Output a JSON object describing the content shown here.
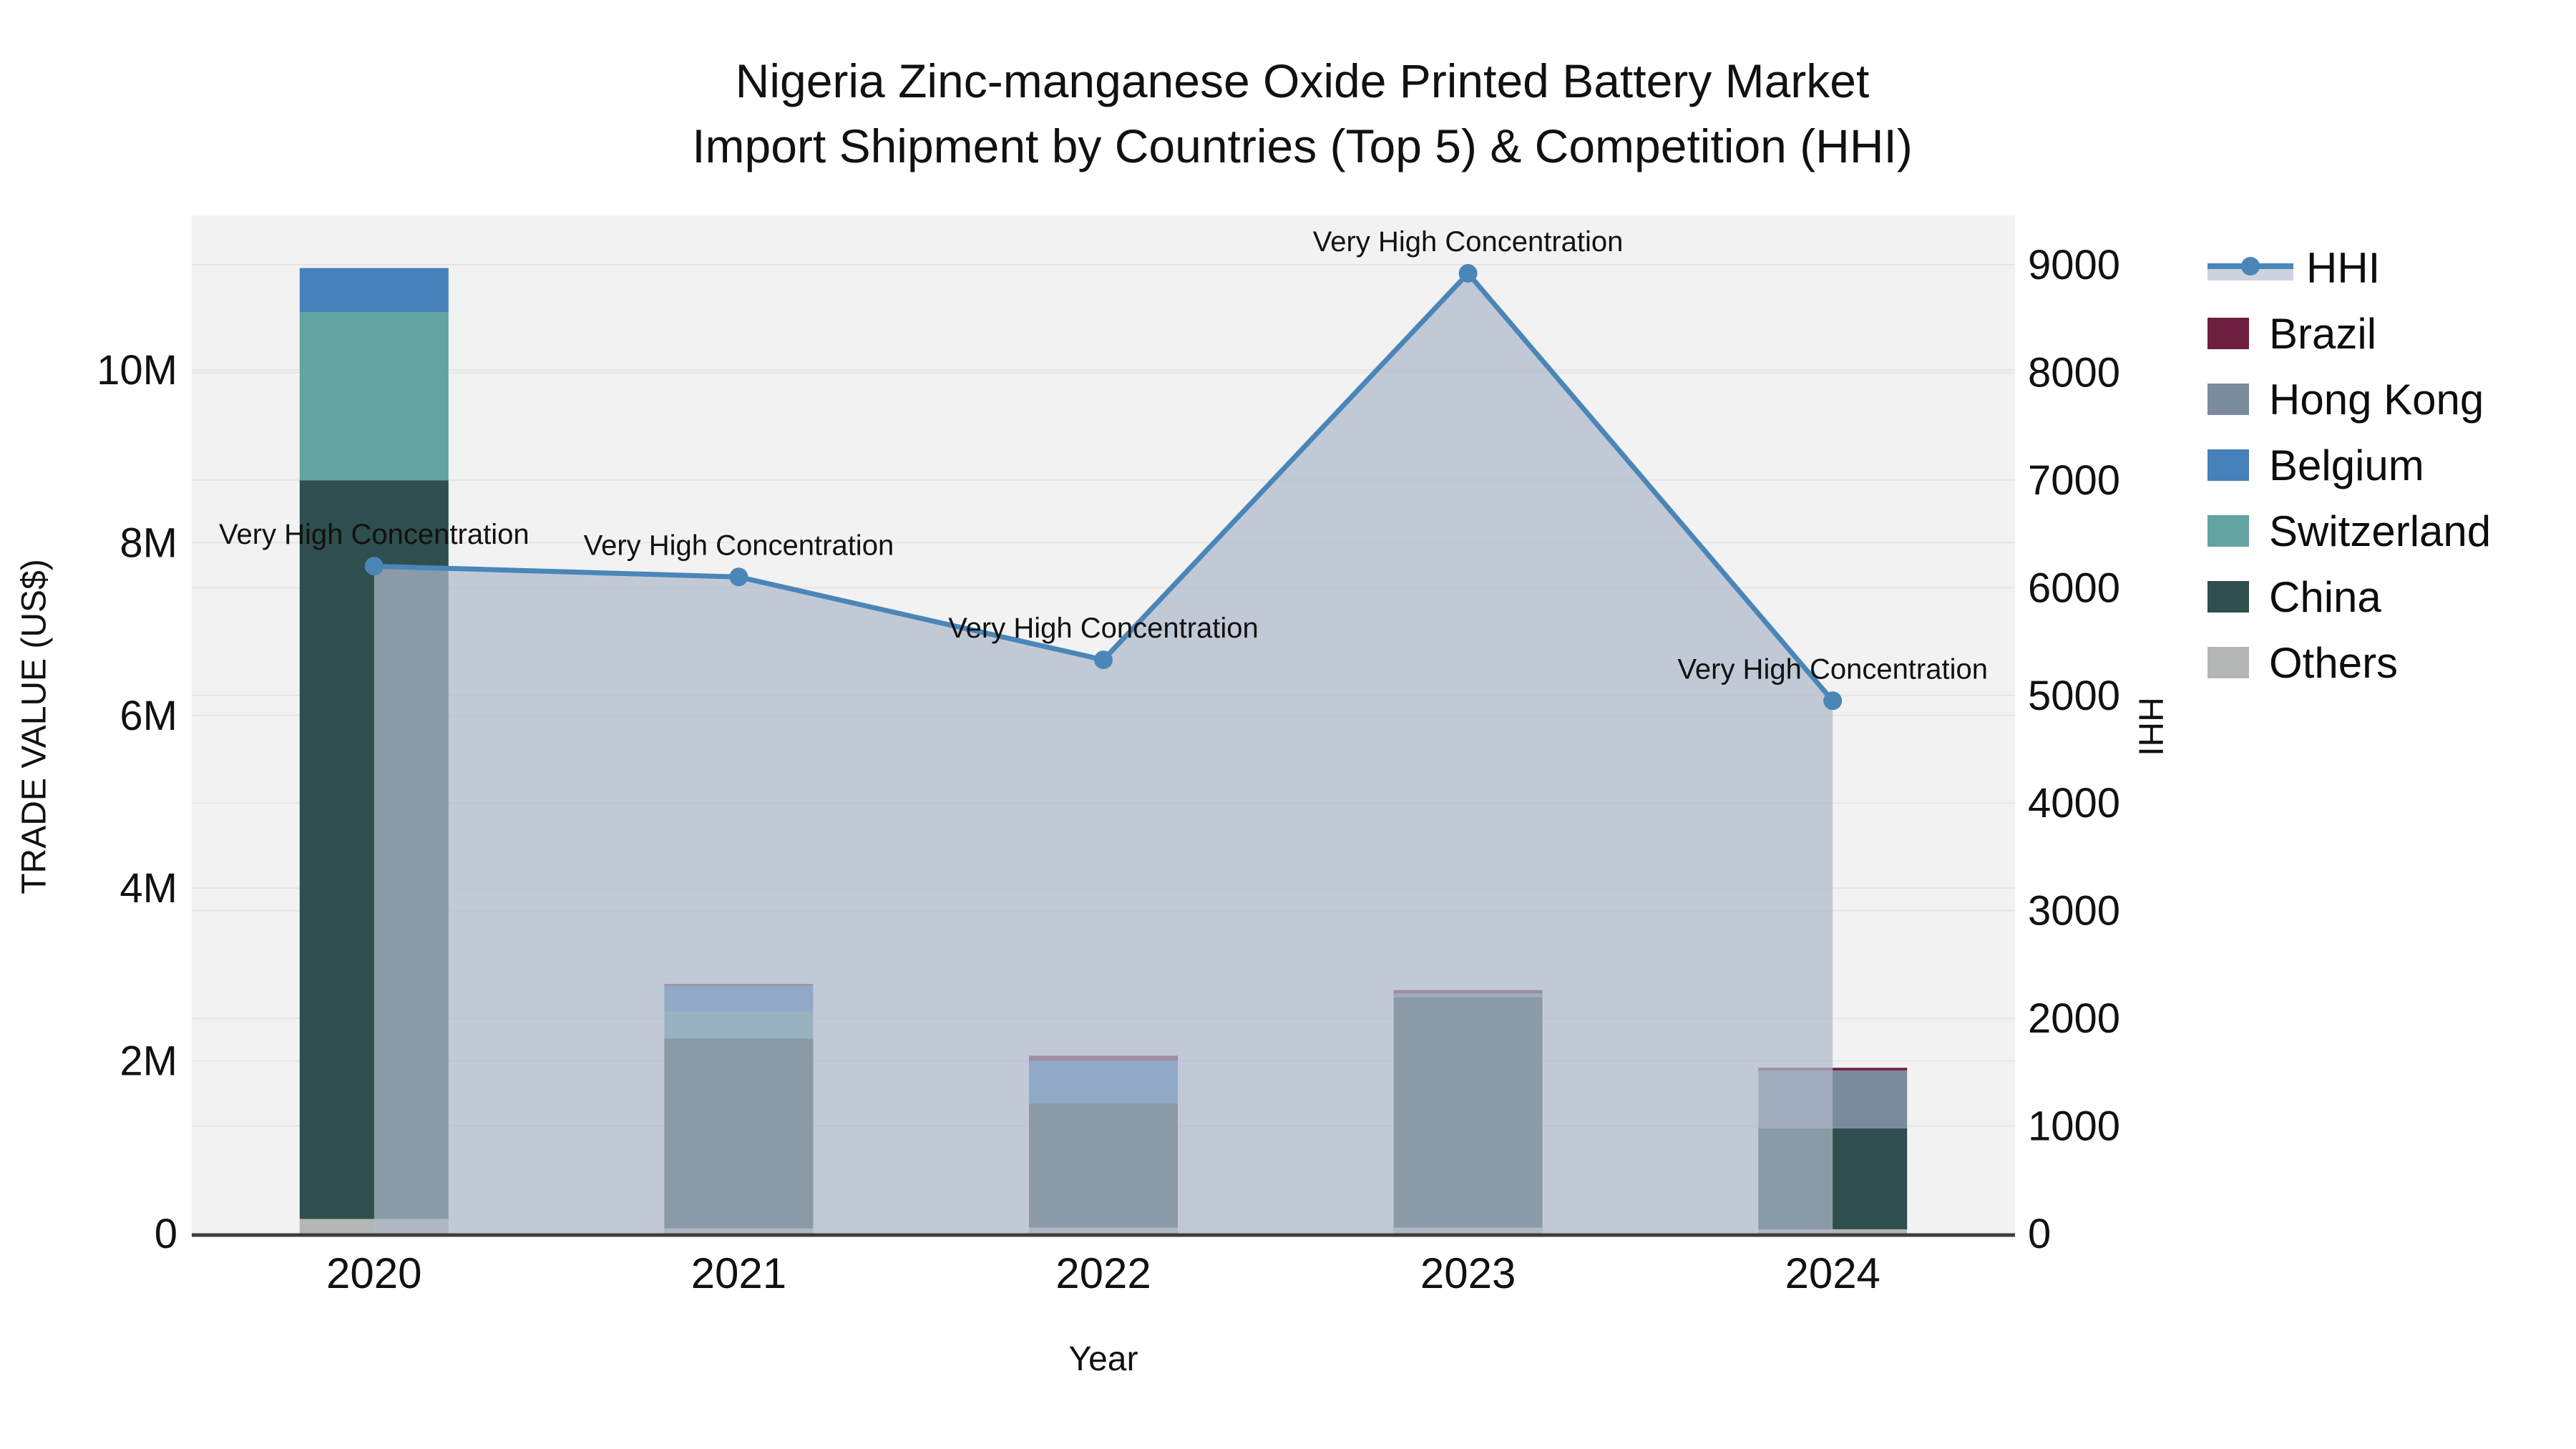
{
  "title": {
    "line1": "Nigeria Zinc-manganese Oxide Printed Battery Market",
    "line2": "Import Shipment by Countries (Top 5) & Competition (HHI)"
  },
  "axes": {
    "left": {
      "title": "TRADE VALUE (US$)",
      "tick_values": [
        0,
        2,
        4,
        6,
        8,
        10
      ],
      "tick_labels": [
        "0",
        "2M",
        "4M",
        "6M",
        "8M",
        "10M"
      ],
      "units": "millions USD"
    },
    "right": {
      "title": "HHI",
      "tick_values": [
        0,
        1000,
        2000,
        3000,
        4000,
        5000,
        6000,
        7000,
        8000,
        9000
      ],
      "tick_labels": [
        "0",
        "1000",
        "2000",
        "3000",
        "4000",
        "5000",
        "6000",
        "7000",
        "8000",
        "9000"
      ]
    },
    "x": {
      "title": "Year",
      "tick_labels": [
        "2020",
        "2021",
        "2022",
        "2023",
        "2024"
      ]
    }
  },
  "legend": [
    {
      "name": "HHI",
      "type": "line",
      "color": "#4a86b8",
      "band": "#ccd3de"
    },
    {
      "name": "Brazil",
      "type": "bar",
      "color": "#6e1e3e"
    },
    {
      "name": "Hong Kong",
      "type": "bar",
      "color": "#7b8b9d"
    },
    {
      "name": "Belgium",
      "type": "bar",
      "color": "#4781b9"
    },
    {
      "name": "Switzerland",
      "type": "bar",
      "color": "#63a3a0"
    },
    {
      "name": "China",
      "type": "bar",
      "color": "#2e4f4d"
    },
    {
      "name": "Others",
      "type": "bar",
      "color": "#b3b6b4"
    }
  ],
  "chart_data": {
    "type": "bar+line",
    "title": "Nigeria Zinc-manganese Oxide Printed Battery Market Import Shipment by Countries (Top 5) & Competition (HHI)",
    "xlabel": "Year",
    "ylabel_left": "TRADE VALUE (US$)",
    "ylabel_right": "HHI",
    "categories": [
      "2020",
      "2021",
      "2022",
      "2023",
      "2024"
    ],
    "bar_value_unit": "million US$",
    "stack_order_bottom_to_top": [
      "Others",
      "China",
      "Switzerland",
      "Belgium",
      "Hong Kong",
      "Brazil"
    ],
    "series": [
      {
        "name": "Others",
        "color": "#b3b6b4",
        "values": [
          0.17,
          0.06,
          0.07,
          0.07,
          0.05
        ]
      },
      {
        "name": "China",
        "color": "#2e4f4d",
        "values": [
          8.55,
          2.2,
          1.44,
          2.67,
          1.17
        ]
      },
      {
        "name": "Switzerland",
        "color": "#63a3a0",
        "values": [
          1.95,
          0.31,
          0.0,
          0.0,
          0.0
        ]
      },
      {
        "name": "Belgium",
        "color": "#4781b9",
        "values": [
          0.51,
          0.3,
          0.49,
          0.0,
          0.0
        ]
      },
      {
        "name": "Hong Kong",
        "color": "#7b8b9d",
        "values": [
          0.0,
          0.0,
          0.0,
          0.04,
          0.67
        ]
      },
      {
        "name": "Brazil",
        "color": "#6e1e3e",
        "values": [
          0.0,
          0.02,
          0.06,
          0.04,
          0.03
        ]
      }
    ],
    "bar_totals": [
      11.18,
      2.89,
      2.06,
      2.82,
      1.92
    ],
    "line_series": {
      "name": "HHI",
      "color": "#4a86b8",
      "area_fill": "rgba(175,185,203,0.72)",
      "values": [
        6200,
        6100,
        5330,
        8920,
        4950
      ]
    },
    "annotations": [
      {
        "text": "Very High Concentration",
        "category": "2020"
      },
      {
        "text": "Very High Concentration",
        "category": "2021"
      },
      {
        "text": "Very High Concentration",
        "category": "2022"
      },
      {
        "text": "Very High Concentration",
        "category": "2023"
      },
      {
        "text": "Very High Concentration",
        "category": "2024"
      }
    ],
    "ylim_left_millions": [
      0,
      11.8
    ],
    "ylim_right": [
      0,
      9460
    ],
    "grid": true,
    "plot_background": "#f2f2f2",
    "grid_color": "#e4e4e4",
    "axis_line_color": "#3d3d3d",
    "legend_position": "right"
  }
}
